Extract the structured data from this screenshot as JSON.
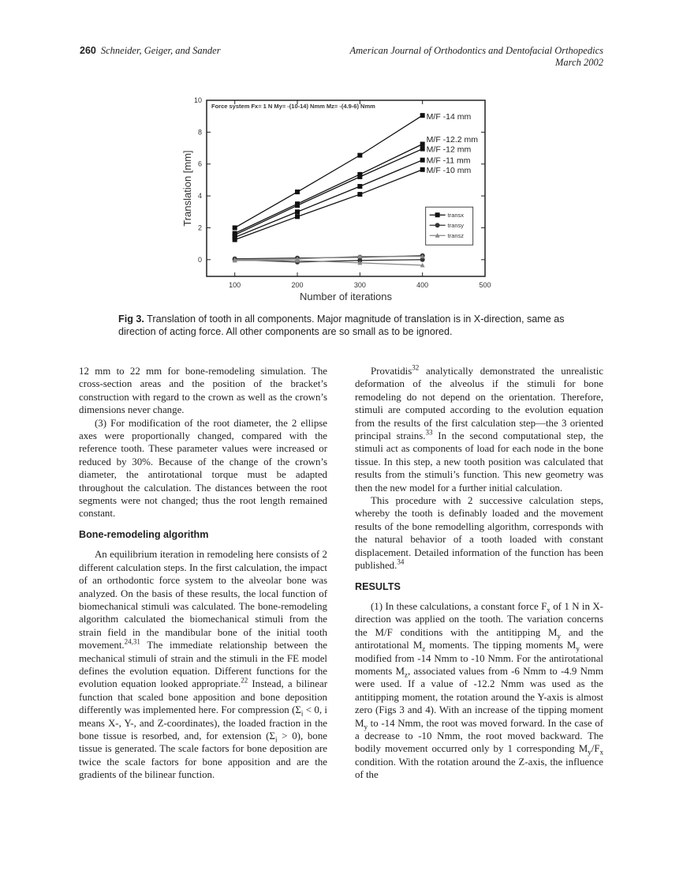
{
  "header": {
    "page_number": "260",
    "authors": "Schneider, Geiger, and Sander",
    "journal": "American Journal of Orthodontics and Dentofacial Orthopedics",
    "date": "March 2002"
  },
  "chart_data": {
    "type": "line",
    "title": "Force system Fx= 1 N  My= -(10-14) Nmm  Mz= -(4.9-6) Nmm",
    "xlabel": "Number of iterations",
    "ylabel": "Translation [mm]",
    "xlim": [
      55,
      500
    ],
    "ylim": [
      -1.05,
      10
    ],
    "xticks": [
      100,
      200,
      300,
      400,
      500
    ],
    "yticks": [
      0,
      2,
      4,
      6,
      8,
      10
    ],
    "grid": false,
    "legend": {
      "placement": "right",
      "entries": [
        "transx",
        "transy",
        "transz"
      ]
    },
    "x": [
      100,
      200,
      300,
      400
    ],
    "series": [
      {
        "name": "M/F  -14 mm",
        "component": "transx",
        "values": [
          2.0,
          4.25,
          6.55,
          9.05
        ]
      },
      {
        "name": "M/F  -12.2 mm",
        "component": "transx",
        "values": [
          1.65,
          3.5,
          5.35,
          7.25
        ]
      },
      {
        "name": "M/F  -12 mm",
        "component": "transx",
        "values": [
          1.55,
          3.4,
          5.2,
          6.95
        ]
      },
      {
        "name": "M/F  -11 mm",
        "component": "transx",
        "values": [
          1.4,
          3.0,
          4.6,
          6.25
        ]
      },
      {
        "name": "M/F  -10 mm",
        "component": "transx",
        "values": [
          1.25,
          2.7,
          4.1,
          5.65
        ]
      },
      {
        "component": "transy",
        "values": [
          0.05,
          0.1,
          0.15,
          0.25
        ]
      },
      {
        "component": "transy",
        "values": [
          0.0,
          -0.15,
          -0.05,
          0.0
        ]
      },
      {
        "component": "transz",
        "values": [
          0.0,
          0.05,
          0.2,
          0.2
        ]
      },
      {
        "component": "transz",
        "values": [
          -0.05,
          -0.05,
          -0.2,
          -0.35
        ]
      }
    ]
  },
  "caption": {
    "label": "Fig 3.",
    "text": " Translation of tooth in all components. Major magnitude of translation is in X-direction, same as direction of acting force. All other components are so small as to be ignored."
  },
  "left_column": [
    {
      "type": "p",
      "indent": false,
      "text": "12 mm to 22 mm for bone-remodeling simulation. The cross-section areas and the position of the bracket’s construction with regard to the crown as well as the crown’s dimensions never change."
    },
    {
      "type": "p",
      "indent": true,
      "text": "(3) For modification of the root diameter, the 2 ellipse axes were proportionally changed, compared with the reference tooth. These parameter values were increased or reduced by 30%. Because of the change of the crown’s diameter, the antirotational torque must be adapted throughout the calculation. The distances between the root segments were not changed; thus the root length remained constant."
    },
    {
      "type": "h",
      "text": "Bone-remodeling algorithm"
    },
    {
      "type": "p",
      "indent": true,
      "text": "An equilibrium iteration in remodeling here consists of 2 different calculation steps. In the first calculation, the impact of an orthodontic force system to the alveolar bone was analyzed. On the basis of these results, the local function of biomechanical stimuli was calculated. The bone-remodeling algorithm calculated the biomechanical stimuli from the strain field in the mandibular bone of the initial tooth movement.^{24,31} The immediate relationship between the mechanical stimuli of strain and the stimuli in the FE model defines the evolution equation. Different functions for the evolution equation looked appropriate.^{22} Instead, a bilinear function that scaled bone apposition and bone deposition differently was implemented here. For compression (Σ_{i} < 0, i means X-, Y-, and Z-coordinates), the loaded fraction in the bone tissue is resorbed, and, for extension (Σ_{i} > 0), bone tissue is generated. The scale factors for bone deposition are twice the scale factors for bone apposition and are the gradients of the bilinear function."
    }
  ],
  "right_column": [
    {
      "type": "p",
      "indent": true,
      "text": "Provatidis^{32} analytically demonstrated the unrealistic deformation of the alveolus if the stimuli for bone remodeling do not depend on the orientation. Therefore, stimuli are computed according to the evolution equation from the results of the first calculation step—the 3 oriented principal strains.^{33} In the second computational step, the stimuli act as components of load for each node in the bone tissue. In this step, a new tooth position was calculated that results from the stimuli’s function. This new geometry was then the new model for a further initial calculation."
    },
    {
      "type": "p",
      "indent": true,
      "text": "This procedure with 2 successive calculation steps, whereby the tooth is definably loaded and the movement results of the bone remodelling algorithm, corresponds with the natural behavior of a tooth loaded with constant displacement. Detailed information of the function has been published.^{34}"
    },
    {
      "type": "h",
      "text": "RESULTS"
    },
    {
      "type": "p",
      "indent": true,
      "text": "(1) In these calculations, a constant force F_{x} of 1 N in X-direction was applied on the tooth. The variation concerns the M/F conditions with the antitipping M_{y} and the antirotational M_{z} moments. The tipping moments M_{y} were modified from -14 Nmm to -10 Nmm. For the antirotational moments M_{z}, associated values from -6 Nmm to -4.9 Nmm were used. If a value of -12.2 Nmm was used as the antitipping moment, the rotation around the Y-axis is almost zero (Figs 3 and 4). With an increase of the tipping moment M_{y} to -14 Nmm, the root was moved forward. In the case of a decrease to -10 Nmm, the root moved backward. The bodily movement occurred only by 1 corresponding M_{y}/F_{x} condition. With the rotation around the Z-axis, the influence of the"
    }
  ]
}
